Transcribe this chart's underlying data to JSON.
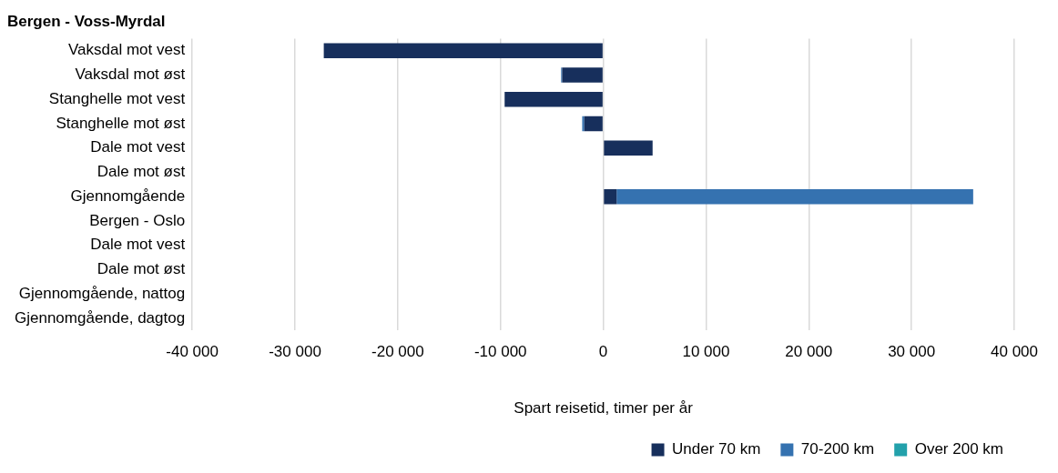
{
  "chart_data": {
    "type": "bar",
    "orientation": "horizontal",
    "stacked": true,
    "title": "Bergen - Voss-Myrdal",
    "xlabel": "Spart reisetid, timer per år",
    "categories": [
      "Vaksdal mot vest",
      "Vaksdal mot øst",
      "Stanghelle mot vest",
      "Stanghelle mot øst",
      "Dale mot vest",
      "Dale mot øst",
      "Gjennomgående",
      "Bergen - Oslo",
      "Dale mot vest",
      "Dale mot øst",
      "Gjennomgående, nattog",
      "Gjennomgående, dagtog"
    ],
    "series": [
      {
        "name": "Under 70 km",
        "color": "#172f5c",
        "values": [
          -27200,
          -4000,
          -9600,
          -1850,
          4800,
          null,
          1300,
          null,
          null,
          null,
          null,
          null
        ]
      },
      {
        "name": "70-200 km",
        "color": "#3572b0",
        "values": [
          null,
          -100,
          null,
          -200,
          null,
          null,
          34700,
          null,
          null,
          null,
          null,
          null
        ]
      },
      {
        "name": "Over 200 km",
        "color": "#23a1ab",
        "values": [
          null,
          null,
          null,
          null,
          null,
          null,
          null,
          null,
          null,
          null,
          null,
          null
        ]
      }
    ],
    "xlim": [
      -40000,
      40000
    ],
    "xticks": [
      {
        "value": -40000,
        "label": "-40 000"
      },
      {
        "value": -30000,
        "label": "-30 000"
      },
      {
        "value": -20000,
        "label": "-20 000"
      },
      {
        "value": -10000,
        "label": "-10 000"
      },
      0,
      {
        "value": 10000,
        "label": "10 000"
      },
      {
        "value": 20000,
        "label": "20 000"
      },
      {
        "value": 30000,
        "label": "30 000"
      },
      {
        "value": 40000,
        "label": "40 000"
      }
    ],
    "grid": "x",
    "legend": "bottom right"
  }
}
